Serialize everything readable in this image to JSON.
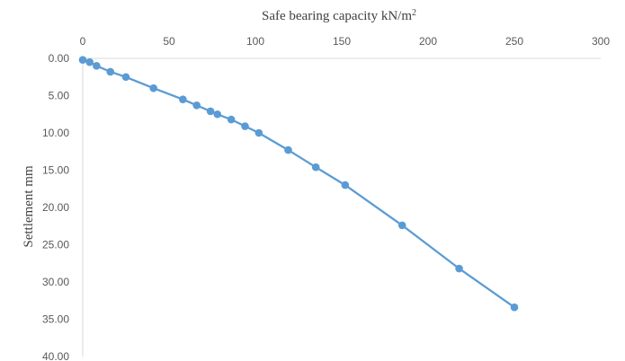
{
  "chart_data": {
    "type": "scatter",
    "mode": "lines+markers",
    "xlabel_text": "Safe bearing capacity kN/m",
    "xlabel_superscript": "2",
    "ylabel": "Settlement mm",
    "x_axis_position": "top",
    "y_axis_inverted": true,
    "xlim": [
      0,
      300
    ],
    "ylim": [
      0,
      40
    ],
    "x_ticks": [
      "0",
      "50",
      "100",
      "150",
      "200",
      "250",
      "300"
    ],
    "y_ticks": [
      "0.00",
      "5.00",
      "10.00",
      "15.00",
      "20.00",
      "25.00",
      "30.00",
      "35.00",
      "40.00"
    ],
    "grid": false,
    "line_color": "#5b9bd5",
    "series": [
      {
        "x": [
          0,
          4,
          8,
          16,
          25,
          41,
          58,
          66,
          74,
          78,
          86,
          94,
          102,
          119,
          135,
          152,
          185,
          218,
          250
        ],
        "y": [
          0.2,
          0.5,
          1.0,
          1.8,
          2.5,
          4.0,
          5.5,
          6.3,
          7.1,
          7.5,
          8.2,
          9.1,
          10.0,
          12.3,
          14.6,
          17.0,
          22.4,
          28.2,
          33.4
        ]
      }
    ]
  }
}
